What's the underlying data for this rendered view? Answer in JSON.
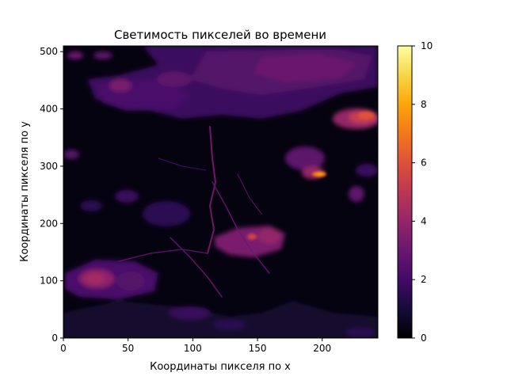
{
  "chart_data": {
    "type": "heatmap",
    "title": "Светимость пикселей во времени",
    "xlabel": "Координаты пикселя по x",
    "ylabel": "Координаты пикселя по y",
    "xlim": [
      0,
      243
    ],
    "ylim": [
      0,
      510
    ],
    "x_ticks": [
      0,
      50,
      100,
      150,
      200
    ],
    "y_ticks": [
      0,
      100,
      200,
      300,
      400,
      500
    ],
    "colorbar": {
      "colormap": "inferno",
      "vmin": 0,
      "vmax": 10,
      "ticks": [
        0,
        2,
        4,
        6,
        8,
        10
      ]
    },
    "regions": [
      {
        "desc": "upper-right bright patch",
        "x": 225,
        "y": 390,
        "value": 4.8
      },
      {
        "desc": "hot spot",
        "x": 198,
        "y": 287,
        "value": 7.5
      },
      {
        "desc": "patch near (160,175)",
        "x": 160,
        "y": 175,
        "value": 3.6
      },
      {
        "desc": "lower-left patch",
        "x": 25,
        "y": 105,
        "value": 3.4
      },
      {
        "desc": "top band",
        "x": 160,
        "y": 460,
        "value": 2.0
      }
    ],
    "grid": false
  }
}
